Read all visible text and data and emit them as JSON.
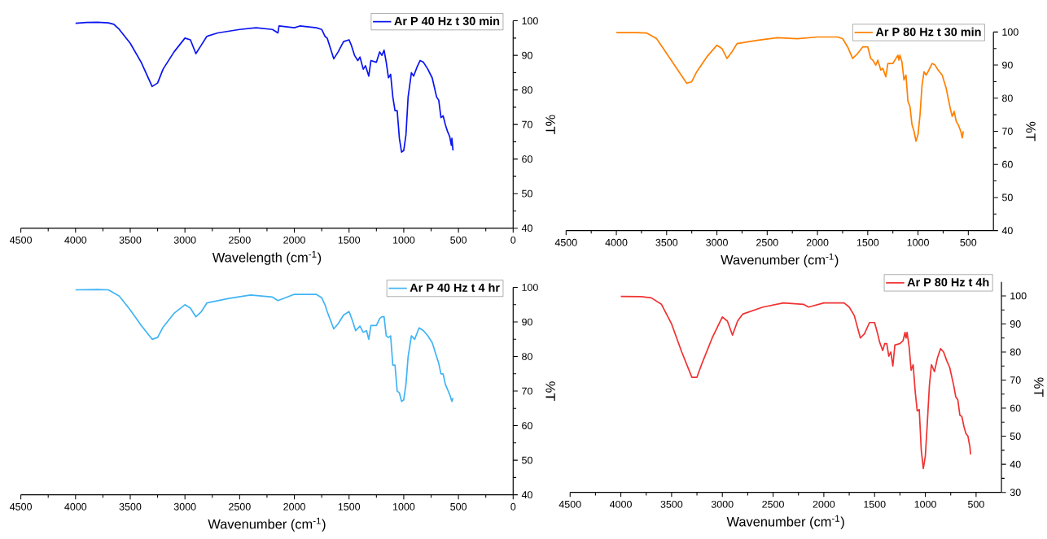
{
  "chart_data": [
    {
      "type": "line",
      "xlabel": "Wavelength (cm$^{-1}$)",
      "ylabel": "%T",
      "xlim": [
        4500,
        0
      ],
      "ylim": [
        40,
        100
      ],
      "xticks": [
        4500,
        4000,
        3500,
        3000,
        2500,
        2000,
        1500,
        1000,
        500,
        0
      ],
      "yticks": [
        40,
        50,
        60,
        70,
        80,
        90,
        100
      ],
      "legend": "top right",
      "series": [
        {
          "name": "Ar P 40 Hz t 30 min",
          "color": "#0a14f0",
          "x": [
            4000,
            3900,
            3800,
            3700,
            3650,
            3600,
            3500,
            3400,
            3350,
            3300,
            3250,
            3200,
            3100,
            3050,
            3000,
            2950,
            2900,
            2850,
            2800,
            2700,
            2500,
            2350,
            2200,
            2150,
            2140,
            2000,
            1950,
            1800,
            1750,
            1720,
            1700,
            1640,
            1600,
            1550,
            1500,
            1480,
            1450,
            1420,
            1400,
            1370,
            1350,
            1320,
            1300,
            1250,
            1220,
            1200,
            1180,
            1160,
            1140,
            1120,
            1100,
            1080,
            1060,
            1040,
            1020,
            1000,
            980,
            960,
            930,
            910,
            880,
            850,
            820,
            780,
            740,
            700,
            680,
            660,
            640,
            620,
            600,
            580,
            565,
            560,
            550
          ],
          "values": [
            99.3,
            99.5,
            99.6,
            99.4,
            99,
            97.5,
            93.5,
            88,
            84.5,
            81,
            82,
            86,
            91,
            93,
            95,
            94.5,
            90.5,
            93,
            95.5,
            96.5,
            97.5,
            98,
            97.5,
            96.5,
            98.5,
            98,
            98.5,
            98,
            97.5,
            95.5,
            95,
            89,
            91,
            94,
            94.5,
            93,
            90,
            88.5,
            89.5,
            86,
            87,
            84,
            88.5,
            88,
            91,
            90,
            91.5,
            88,
            83.5,
            84.5,
            78,
            74,
            74,
            66,
            62,
            62.5,
            67,
            78,
            85,
            84,
            86.5,
            88.5,
            88,
            86,
            83.5,
            78,
            77,
            72,
            72.5,
            70,
            68,
            66.5,
            64,
            66,
            62.5
          ]
        }
      ]
    },
    {
      "type": "line",
      "xlabel": "Wavenumber (cm$^{-1}$)",
      "ylabel": "%T",
      "xlim": [
        4500,
        250
      ],
      "ylim": [
        40,
        100
      ],
      "xticks": [
        4500,
        4000,
        3500,
        3000,
        2500,
        2000,
        1500,
        1000,
        500
      ],
      "yticks": [
        40,
        50,
        60,
        70,
        80,
        90,
        100
      ],
      "legend": "top right",
      "series": [
        {
          "name": "Ar P 80 Hz t 30 min",
          "color": "#ff8000",
          "x": [
            4000,
            3800,
            3700,
            3600,
            3500,
            3400,
            3300,
            3250,
            3200,
            3100,
            3000,
            2950,
            2900,
            2850,
            2800,
            2600,
            2400,
            2200,
            2000,
            1800,
            1750,
            1700,
            1650,
            1600,
            1550,
            1500,
            1470,
            1450,
            1420,
            1400,
            1370,
            1350,
            1320,
            1300,
            1250,
            1200,
            1190,
            1180,
            1160,
            1140,
            1120,
            1100,
            1080,
            1060,
            1040,
            1020,
            1000,
            980,
            960,
            940,
            920,
            900,
            860,
            830,
            800,
            760,
            720,
            700,
            680,
            660,
            640,
            620,
            600,
            575,
            560,
            550
          ],
          "values": [
            99.8,
            99.8,
            99.7,
            98,
            93.5,
            89,
            84.5,
            85,
            88,
            92.5,
            96,
            95,
            92,
            94,
            96.5,
            97.5,
            98.3,
            98,
            98.5,
            98.5,
            98,
            95.5,
            92,
            93.5,
            95.5,
            95.5,
            92,
            91.5,
            90,
            91.5,
            88.5,
            89,
            86.5,
            90.5,
            90.5,
            93,
            91.5,
            93,
            91,
            85.5,
            87,
            79,
            77.5,
            72,
            70,
            67,
            69,
            75,
            84,
            88,
            87,
            88,
            90.5,
            90,
            88.5,
            87,
            83,
            80,
            77,
            74.5,
            76,
            73,
            72,
            70,
            68,
            70
          ]
        }
      ]
    },
    {
      "type": "line",
      "xlabel": "Wavenumber (cm$^{-1}$)",
      "ylabel": "%T",
      "xlim": [
        4500,
        0
      ],
      "ylim": [
        40,
        100
      ],
      "xticks": [
        4500,
        4000,
        3500,
        3000,
        2500,
        2000,
        1500,
        1000,
        500,
        0
      ],
      "yticks": [
        40,
        50,
        60,
        70,
        80,
        90,
        100
      ],
      "legend": "top right",
      "series": [
        {
          "name": "Ar P 40 Hz t 4 hr",
          "color": "#40b4f5",
          "x": [
            4000,
            3800,
            3700,
            3600,
            3500,
            3400,
            3300,
            3250,
            3200,
            3100,
            3000,
            2950,
            2900,
            2850,
            2800,
            2600,
            2400,
            2200,
            2150,
            2000,
            1800,
            1750,
            1720,
            1700,
            1640,
            1600,
            1550,
            1500,
            1470,
            1440,
            1400,
            1370,
            1340,
            1320,
            1300,
            1250,
            1220,
            1200,
            1180,
            1160,
            1140,
            1120,
            1100,
            1080,
            1060,
            1040,
            1020,
            1000,
            980,
            960,
            930,
            900,
            860,
            820,
            780,
            740,
            700,
            680,
            660,
            640,
            620,
            600,
            580,
            560,
            550
          ],
          "values": [
            99.3,
            99.4,
            99.3,
            97.5,
            93.5,
            89,
            85,
            85.5,
            88.5,
            92.5,
            95,
            94,
            91.5,
            93,
            95.5,
            96.8,
            97.8,
            97.2,
            96.2,
            98,
            98,
            97,
            95,
            93,
            88,
            89.5,
            92,
            93,
            90.5,
            87.5,
            88.8,
            87,
            87.5,
            85,
            89,
            89,
            91,
            91.5,
            91.5,
            86,
            85.5,
            86,
            77.5,
            77.5,
            70,
            69.5,
            67,
            67.5,
            72,
            80,
            86,
            85,
            88.3,
            87.5,
            86,
            84,
            80,
            78,
            75,
            75,
            72,
            70.5,
            69,
            67,
            68
          ]
        }
      ]
    },
    {
      "type": "line",
      "xlabel": "Wavenumber (cm$^{-1}$)",
      "ylabel": "%T",
      "xlim": [
        4500,
        250
      ],
      "ylim": [
        30,
        105
      ],
      "xticks": [
        4500,
        4000,
        3500,
        3000,
        2500,
        2000,
        1500,
        1000,
        500
      ],
      "yticks": [
        30,
        40,
        50,
        60,
        70,
        80,
        90,
        100
      ],
      "legend": "top right",
      "series": [
        {
          "name": "Ar P 80 Hz t 4h",
          "color": "#f03232",
          "x": [
            4000,
            3800,
            3700,
            3600,
            3500,
            3400,
            3300,
            3250,
            3200,
            3100,
            3000,
            2950,
            2900,
            2850,
            2800,
            2600,
            2400,
            2200,
            2150,
            2000,
            1800,
            1750,
            1700,
            1640,
            1600,
            1550,
            1500,
            1470,
            1450,
            1420,
            1400,
            1380,
            1360,
            1340,
            1320,
            1300,
            1250,
            1220,
            1200,
            1190,
            1180,
            1160,
            1140,
            1120,
            1100,
            1080,
            1060,
            1040,
            1020,
            1000,
            980,
            960,
            940,
            910,
            880,
            850,
            820,
            790,
            760,
            720,
            700,
            680,
            660,
            640,
            620,
            600,
            580,
            570,
            560,
            555
          ],
          "values": [
            99.8,
            99.7,
            99.3,
            97,
            90,
            80,
            71,
            71,
            76,
            85,
            92.5,
            91,
            86,
            91,
            93.5,
            96,
            97.5,
            97,
            96,
            97.5,
            97.5,
            96,
            93,
            85,
            86.5,
            90.5,
            90.5,
            86.5,
            83.5,
            80.5,
            83,
            83,
            78.5,
            80,
            75,
            82.5,
            83,
            84,
            87,
            85,
            87,
            82,
            73.5,
            75.5,
            66,
            59,
            59.5,
            45,
            38.5,
            43,
            55,
            68,
            75.5,
            73,
            78,
            81.2,
            80,
            77,
            74.5,
            68,
            64,
            63,
            57.5,
            57,
            53.5,
            51,
            50,
            48,
            46,
            43.5
          ]
        }
      ]
    }
  ]
}
